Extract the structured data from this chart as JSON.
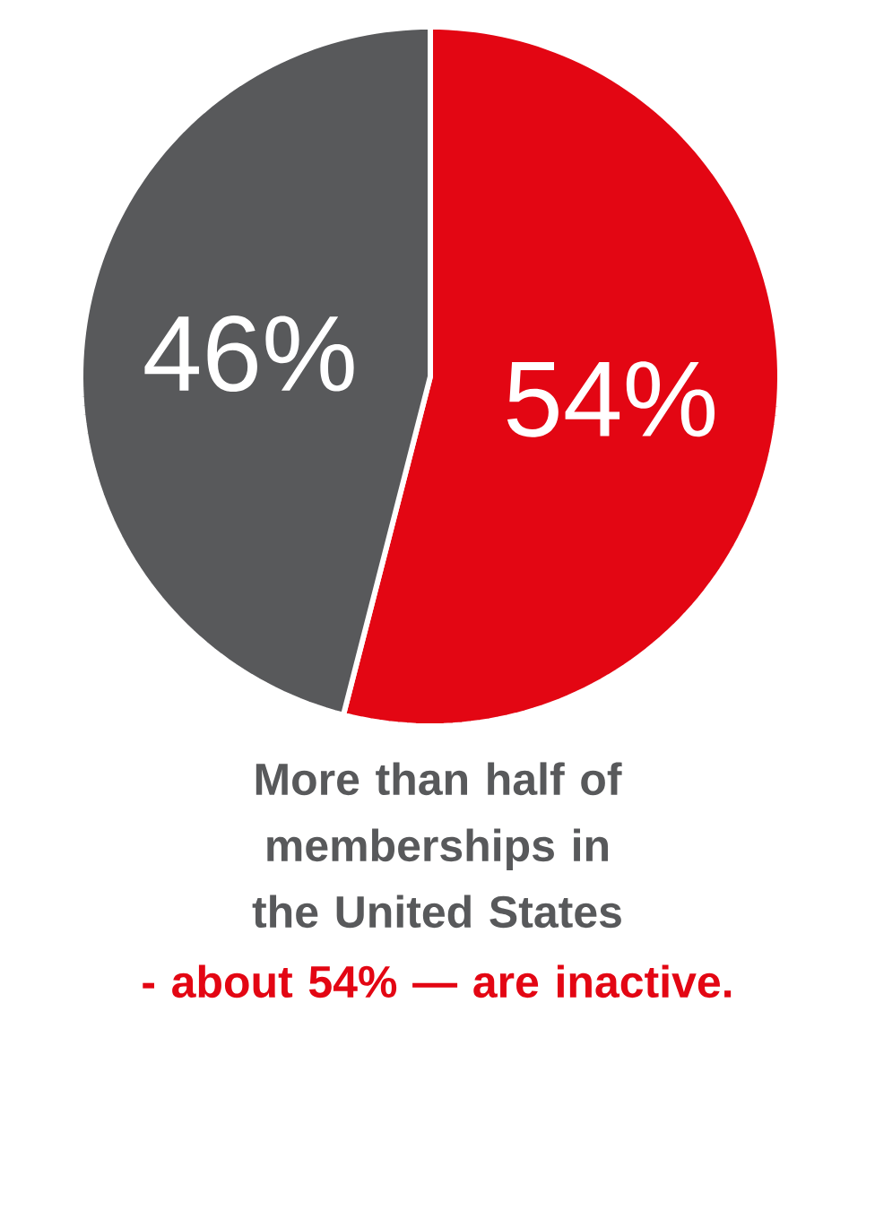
{
  "chart_data": {
    "type": "pie",
    "categories": [
      null,
      null
    ],
    "values": [
      54,
      46
    ],
    "colors": [
      "#e30613",
      "#58595b"
    ],
    "value_labels": [
      "54%",
      "46%"
    ],
    "annotations": [
      "More than half of memberships in the United States",
      "- about 54% — are inactive."
    ]
  }
}
